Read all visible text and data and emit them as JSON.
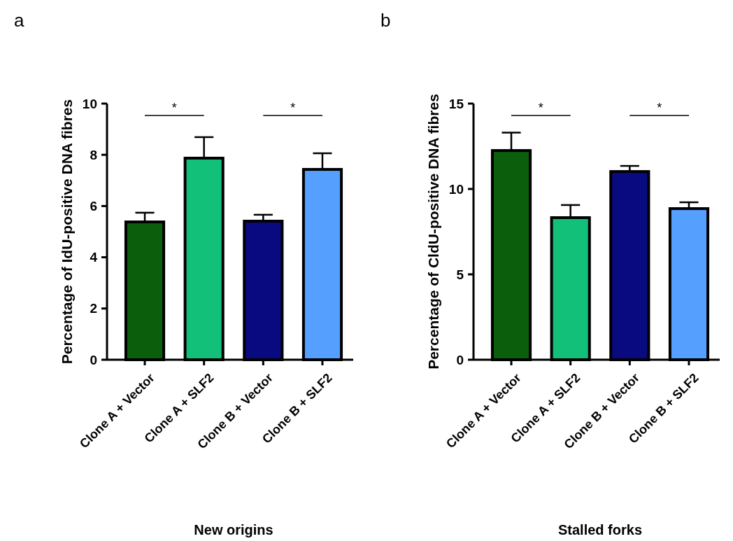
{
  "chart_data": [
    {
      "type": "bar",
      "title": "a",
      "xlabel": "New origins",
      "ylabel": "Percentage of IdU-positive DNA fibres",
      "categories": [
        "Clone A + Vector",
        "Clone A + SLF2",
        "Clone B + Vector",
        "Clone B + SLF2"
      ],
      "values": [
        5.38,
        7.87,
        5.41,
        7.43
      ],
      "colors": [
        "#0b5e0b",
        "#12c07a",
        "#0a0a80",
        "#55a0ff"
      ],
      "errors": [
        [
          5.38,
          5.74
        ],
        [
          7.87,
          8.69
        ],
        [
          5.41,
          5.66
        ],
        [
          7.43,
          8.06
        ]
      ],
      "ylim": [
        0,
        10
      ],
      "yticks": [
        0,
        2,
        4,
        6,
        8,
        10
      ],
      "grid": false,
      "annotations": [
        "*",
        "*"
      ]
    },
    {
      "type": "bar",
      "title": "b",
      "xlabel": "Stalled forks",
      "ylabel": "Percentage of CldU-positive DNA fibres",
      "categories": [
        "Clone A + Vector",
        "Clone A + SLF2",
        "Clone B + Vector",
        "Clone B + SLF2"
      ],
      "values": [
        12.25,
        8.32,
        11.02,
        8.85
      ],
      "colors": [
        "#0b5e0b",
        "#12c07a",
        "#0a0a80",
        "#55a0ff"
      ],
      "errors": [
        [
          12.25,
          13.3
        ],
        [
          8.32,
          9.06
        ],
        [
          11.02,
          11.35
        ],
        [
          8.85,
          9.22
        ]
      ],
      "ylim": [
        0,
        15
      ],
      "yticks": [
        0,
        5,
        10,
        15
      ],
      "grid": false,
      "annotations": [
        "*",
        "*"
      ]
    }
  ]
}
